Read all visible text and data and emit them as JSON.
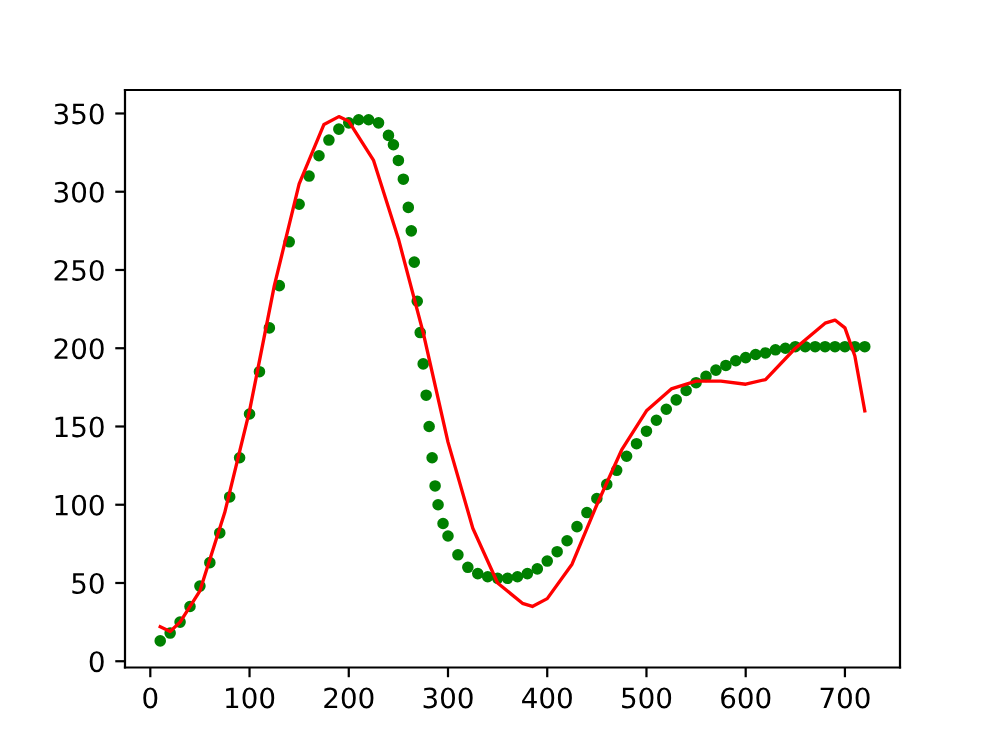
{
  "chart_data": {
    "type": "scatter",
    "xlim": [
      -25.5,
      755.5
    ],
    "ylim": [
      -4,
      365
    ],
    "xticks": [
      0,
      100,
      200,
      300,
      400,
      500,
      600,
      700
    ],
    "yticks": [
      0,
      50,
      100,
      150,
      200,
      250,
      300,
      350
    ],
    "grid": false,
    "legend": false,
    "series": [
      {
        "color": "#008000",
        "marker": "circle",
        "x": [
          10,
          20,
          30,
          40,
          50,
          60,
          70,
          80,
          90,
          100,
          110,
          120,
          130,
          140,
          150,
          160,
          170,
          180,
          190,
          200,
          210,
          220,
          230,
          240,
          245,
          250,
          255,
          260,
          263,
          266,
          269,
          272,
          275,
          278,
          281,
          284,
          287,
          290,
          295,
          300,
          310,
          320,
          330,
          340,
          350,
          360,
          370,
          380,
          390,
          400,
          410,
          420,
          430,
          440,
          450,
          460,
          470,
          480,
          490,
          500,
          510,
          520,
          530,
          540,
          550,
          560,
          570,
          580,
          590,
          600,
          610,
          620,
          630,
          640,
          650,
          660,
          670,
          680,
          690,
          700,
          710,
          720
        ],
        "values": [
          13,
          18,
          25,
          35,
          48,
          63,
          82,
          105,
          130,
          158,
          185,
          213,
          240,
          268,
          292,
          310,
          323,
          333,
          340,
          344,
          346,
          346,
          344,
          336,
          330,
          320,
          308,
          290,
          275,
          255,
          230,
          210,
          190,
          170,
          150,
          130,
          112,
          100,
          88,
          80,
          68,
          60,
          56,
          54,
          53,
          53,
          54,
          56,
          59,
          64,
          70,
          77,
          86,
          95,
          104,
          113,
          122,
          131,
          139,
          147,
          154,
          161,
          167,
          173,
          178,
          182,
          186,
          189,
          192,
          194,
          196,
          197,
          199,
          200,
          201,
          201,
          201,
          201,
          201,
          201,
          201,
          201
        ]
      },
      {
        "type": "line",
        "color": "#ff0000",
        "marker": "none",
        "line_style": "solid",
        "x": [
          10,
          20,
          30,
          50,
          75,
          100,
          125,
          150,
          175,
          190,
          200,
          225,
          250,
          275,
          300,
          325,
          350,
          375,
          385,
          400,
          425,
          450,
          475,
          500,
          525,
          550,
          575,
          600,
          620,
          650,
          680,
          690,
          700,
          710,
          720
        ],
        "values": [
          22,
          19,
          25,
          45,
          95,
          160,
          240,
          305,
          343,
          348,
          345,
          320,
          270,
          210,
          140,
          85,
          50,
          37,
          35,
          40,
          62,
          100,
          135,
          160,
          174,
          179,
          179,
          177,
          180,
          200,
          216,
          218,
          213,
          195,
          160
        ]
      }
    ]
  }
}
